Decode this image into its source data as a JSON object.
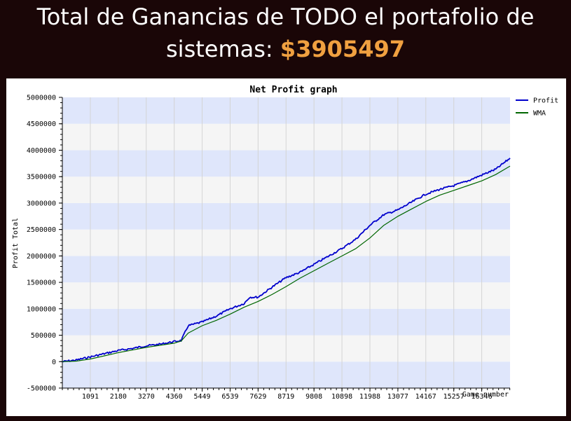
{
  "header": {
    "title_line1": "Total de Ganancias de TODO el portafolio de",
    "title_line2_prefix": "sistemas: ",
    "total_amount": "$3905497",
    "amount_color": "#f0a040"
  },
  "chart_data": {
    "type": "line",
    "title": "Net Profit graph",
    "xlabel": "Game number",
    "ylabel": "Profit Total",
    "xlim": [
      0,
      17450
    ],
    "ylim": [
      -500000,
      5000000
    ],
    "x_ticks": [
      1091,
      2180,
      3270,
      4360,
      5449,
      6539,
      7629,
      8719,
      9808,
      10898,
      11988,
      13077,
      14167,
      15257,
      16346
    ],
    "x_tick_labels": [
      "1091",
      "2180",
      "3270",
      "4360",
      "5449",
      "6539",
      "7629",
      "8719",
      "9808",
      "10898",
      "11988",
      "13077",
      "14167",
      "15257",
      "16346"
    ],
    "y_ticks": [
      -500000,
      0,
      500000,
      1000000,
      1500000,
      2000000,
      2500000,
      3000000,
      3500000,
      4000000,
      4500000,
      5000000
    ],
    "y_tick_labels": [
      "-500000",
      "0",
      "500000",
      "1000000",
      "1500000",
      "2000000",
      "2500000",
      "3000000",
      "3500000",
      "4000000",
      "4500000",
      "5000000"
    ],
    "legend_position": "right",
    "grid": true,
    "band_colors": [
      "#dfe6fb",
      "#f5f5f5"
    ],
    "series": [
      {
        "name": "Profit",
        "color": "#0000cc",
        "x": [
          0,
          545,
          1091,
          1635,
          2180,
          2725,
          3270,
          3815,
          4360,
          4632,
          4904,
          5449,
          5994,
          6539,
          7084,
          7300,
          7629,
          8174,
          8719,
          9264,
          9808,
          10353,
          10898,
          11443,
          11988,
          12532,
          13077,
          13622,
          14167,
          14712,
          15257,
          15802,
          16346,
          16891,
          17450
        ],
        "values": [
          0,
          30000,
          90000,
          150000,
          210000,
          250000,
          300000,
          330000,
          380000,
          400000,
          680000,
          750000,
          860000,
          1000000,
          1100000,
          1220000,
          1220000,
          1410000,
          1590000,
          1690000,
          1840000,
          1990000,
          2140000,
          2320000,
          2580000,
          2780000,
          2870000,
          3020000,
          3170000,
          3260000,
          3330000,
          3420000,
          3530000,
          3640000,
          3850000
        ]
      },
      {
        "name": "WMA",
        "color": "#006600",
        "x": [
          0,
          545,
          1091,
          1635,
          2180,
          2725,
          3270,
          3815,
          4360,
          4632,
          4904,
          5449,
          5994,
          6539,
          7084,
          7629,
          8174,
          8719,
          9264,
          9808,
          10353,
          10898,
          11443,
          11988,
          12532,
          13077,
          13622,
          14167,
          14712,
          15257,
          15802,
          16346,
          16891,
          17450
        ],
        "values": [
          0,
          10000,
          50000,
          110000,
          170000,
          220000,
          270000,
          310000,
          350000,
          390000,
          540000,
          680000,
          780000,
          900000,
          1030000,
          1140000,
          1270000,
          1420000,
          1580000,
          1720000,
          1860000,
          2000000,
          2140000,
          2340000,
          2580000,
          2750000,
          2890000,
          3030000,
          3150000,
          3240000,
          3330000,
          3420000,
          3540000,
          3700000
        ]
      }
    ]
  }
}
